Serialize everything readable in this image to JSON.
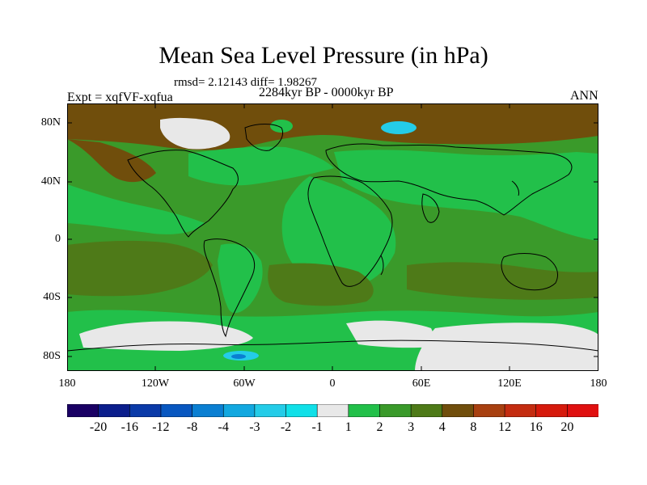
{
  "title": "Mean Sea Level Pressure (in hPa)",
  "stats": "rmsd= 2.12143  diff= 1.98267",
  "subtitle": "2284kyr BP - 0000kyr BP",
  "experiment": "Expt = xqfVF-xqfua",
  "season": "ANN",
  "axes": {
    "y_ticks": [
      "80N",
      "40N",
      "0",
      "40S",
      "80S"
    ],
    "x_ticks": [
      "180",
      "120W",
      "60W",
      "0",
      "60E",
      "120E",
      "180"
    ]
  },
  "colorbar": {
    "labels": [
      "-20",
      "-16",
      "-12",
      "-8",
      "-4",
      "-3",
      "-2",
      "-1",
      "1",
      "2",
      "3",
      "4",
      "8",
      "12",
      "16",
      "20"
    ],
    "colors": [
      "#1a0064",
      "#0b1e8c",
      "#0a3aa8",
      "#0857c0",
      "#0a7fd2",
      "#12a8e0",
      "#24cce8",
      "#10e0e8",
      "#e8e8e8",
      "#22c04a",
      "#3a9a2a",
      "#4e7a18",
      "#704e0c",
      "#a84010",
      "#c42c10",
      "#d61a0c",
      "#e01010"
    ]
  },
  "colors": {
    "dark_olive": "#4e7a18",
    "green": "#3a9a2a",
    "light_green": "#22c04a",
    "brown": "#704e0c",
    "white": "#e8e8e8",
    "cyan": "#24cce8"
  }
}
